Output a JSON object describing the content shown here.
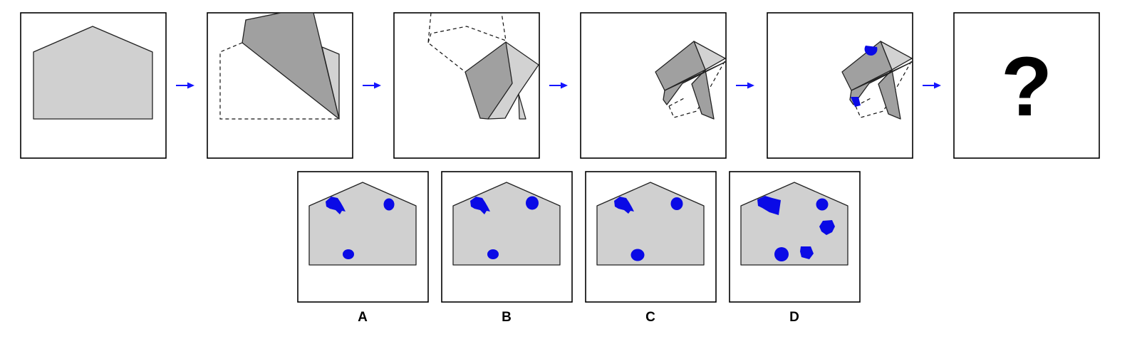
{
  "puzzle": {
    "question_mark": "?",
    "options": [
      {
        "label": "A"
      },
      {
        "label": "B"
      },
      {
        "label": "C"
      },
      {
        "label": "D"
      }
    ]
  },
  "colors": {
    "paper": "#d0d0d0",
    "flap_dark": "#a0a0a0",
    "hole": "#0a0ae6",
    "arrow": "#1515ff"
  }
}
